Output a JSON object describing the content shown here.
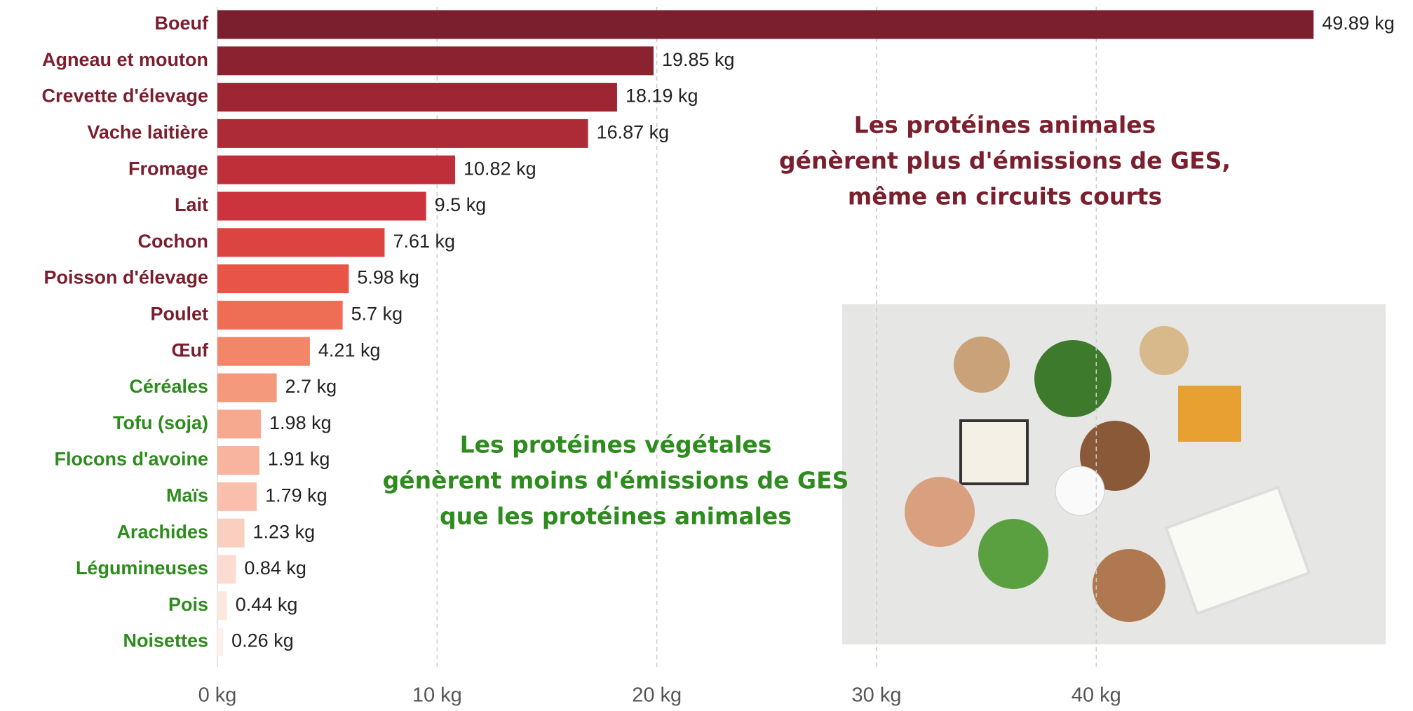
{
  "chart_data": {
    "type": "bar",
    "orientation": "horizontal",
    "categories": [
      "Boeuf",
      "Agneau et mouton",
      "Crevette d'élevage",
      "Vache laitière",
      "Fromage",
      "Lait",
      "Cochon",
      "Poisson d'élevage",
      "Poulet",
      "Œuf",
      "Céréales",
      "Tofu (soja)",
      "Flocons d'avoine",
      "Maïs",
      "Arachides",
      "Légumineuses",
      "Pois",
      "Noisettes"
    ],
    "values": [
      49.89,
      19.85,
      18.19,
      16.87,
      10.82,
      9.5,
      7.61,
      5.98,
      5.7,
      4.21,
      2.7,
      1.98,
      1.91,
      1.79,
      1.23,
      0.84,
      0.44,
      0.26
    ],
    "value_labels": [
      "49.89 kg",
      "19.85 kg",
      "18.19 kg",
      "16.87 kg",
      "10.82 kg",
      "9.5 kg",
      "7.61 kg",
      "5.98 kg",
      "5.7 kg",
      "4.21 kg",
      "2.7 kg",
      "1.98 kg",
      "1.91 kg",
      "1.79 kg",
      "1.23 kg",
      "0.84 kg",
      "0.44 kg",
      "0.26 kg"
    ],
    "colors": [
      "#7b1e2e",
      "#8b2230",
      "#9e2632",
      "#ad2b36",
      "#bf2f3a",
      "#cc333d",
      "#dc4442",
      "#e85547",
      "#ef6c55",
      "#f38668",
      "#f5997c",
      "#f7a98f",
      "#f8b49d",
      "#f9bfac",
      "#fbcfc0",
      "#fcdcd0",
      "#fde8e0",
      "#fef1ec"
    ],
    "label_colors": [
      "#7b1e2e",
      "#7b1e2e",
      "#7b1e2e",
      "#7b1e2e",
      "#7b1e2e",
      "#7b1e2e",
      "#7b1e2e",
      "#7b1e2e",
      "#7b1e2e",
      "#7b1e2e",
      "#2e8b1e",
      "#2e8b1e",
      "#2e8b1e",
      "#2e8b1e",
      "#2e8b1e",
      "#2e8b1e",
      "#2e8b1e",
      "#2e8b1e"
    ],
    "xlim": [
      0,
      54
    ],
    "xticks": [
      {
        "value": 0,
        "label": "0 kg"
      },
      {
        "value": 10,
        "label": "10 kg"
      },
      {
        "value": 20,
        "label": "20 kg"
      },
      {
        "value": 30,
        "label": "30 kg"
      },
      {
        "value": 40,
        "label": "40 kg"
      }
    ],
    "grid": true,
    "annotations": [
      {
        "lines": [
          "Les protéines animales",
          "génèrent plus d'émissions de GES,",
          "même en circuits courts"
        ],
        "color": "#7b1e2e"
      },
      {
        "lines": [
          "Les protéines végétales",
          "génèrent moins d'émissions de GES",
          "que les protéines animales"
        ],
        "color": "#2e8b1e"
      }
    ]
  }
}
